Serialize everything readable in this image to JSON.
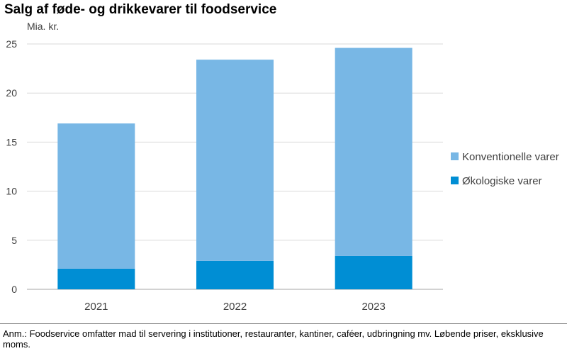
{
  "title": "Salg af føde- og drikkevarer til foodservice",
  "note": "Anm.: Foodservice omfatter mad til servering i institutioner, restauranter, kantiner, caféer, udbringning mv. Løbende priser, eksklusive moms.",
  "chart_data": {
    "type": "bar",
    "stacked": true,
    "title": "Salg af føde- og drikkevarer til foodservice",
    "ylabel": "Mia. kr.",
    "xlabel": "",
    "categories": [
      "2021",
      "2022",
      "2023"
    ],
    "series": [
      {
        "name": "Økologiske varer",
        "values": [
          2.1,
          2.9,
          3.4
        ],
        "color": "#008ed4"
      },
      {
        "name": "Konventionelle varer",
        "values": [
          14.8,
          20.5,
          21.2
        ],
        "color": "#78b7e5"
      }
    ],
    "ylim": [
      0,
      25
    ],
    "yticks": [
      0,
      5,
      10,
      15,
      20,
      25
    ],
    "grid": true,
    "legend_position": "right",
    "legend_order": [
      "Konventionelle varer",
      "Økologiske varer"
    ]
  }
}
